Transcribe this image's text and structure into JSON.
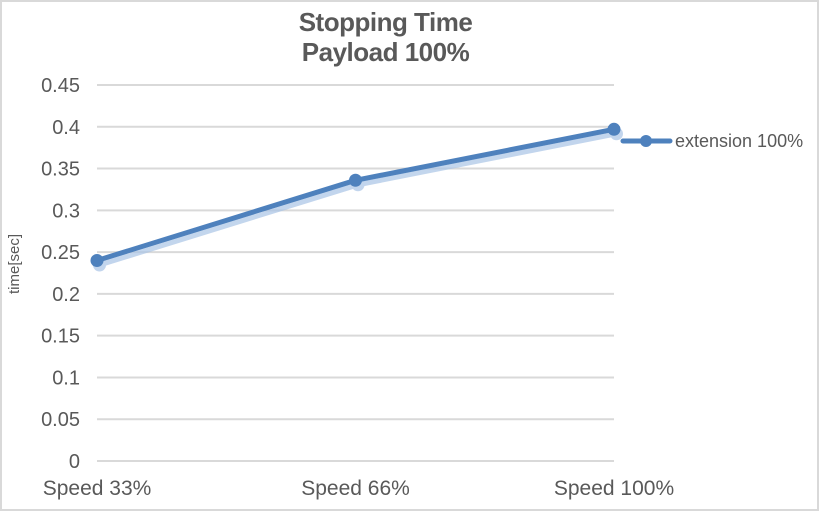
{
  "chart": {
    "title_line1": "Stopping Time",
    "title_line2": "Payload 100%",
    "y_axis_title": "time[sec]",
    "legend_label": "extension 100%",
    "colors": {
      "line": "#4E81BD",
      "line_shadow": "#A9C4E6",
      "grid": "#D9D9D9",
      "text": "#595959",
      "border": "#D9D9D9"
    }
  },
  "chart_data": {
    "type": "line",
    "title": "Stopping Time Payload 100%",
    "xlabel": "",
    "ylabel": "time[sec]",
    "categories": [
      "Speed 33%",
      "Speed 66%",
      "Speed 100%"
    ],
    "series": [
      {
        "name": "extension 100%",
        "values": [
          0.24,
          0.336,
          0.397
        ]
      }
    ],
    "ylim": [
      0,
      0.45
    ],
    "ytick_step": 0.05,
    "yticks": [
      0,
      0.05,
      0.1,
      0.15,
      0.2,
      0.25,
      0.3,
      0.35,
      0.4,
      0.45
    ],
    "ytick_labels": [
      "0",
      "0.05",
      "0.1",
      "0.15",
      "0.2",
      "0.25",
      "0.3",
      "0.35",
      "0.4",
      "0.45"
    ],
    "grid": true,
    "legend_position": "right",
    "marker": "circle"
  }
}
